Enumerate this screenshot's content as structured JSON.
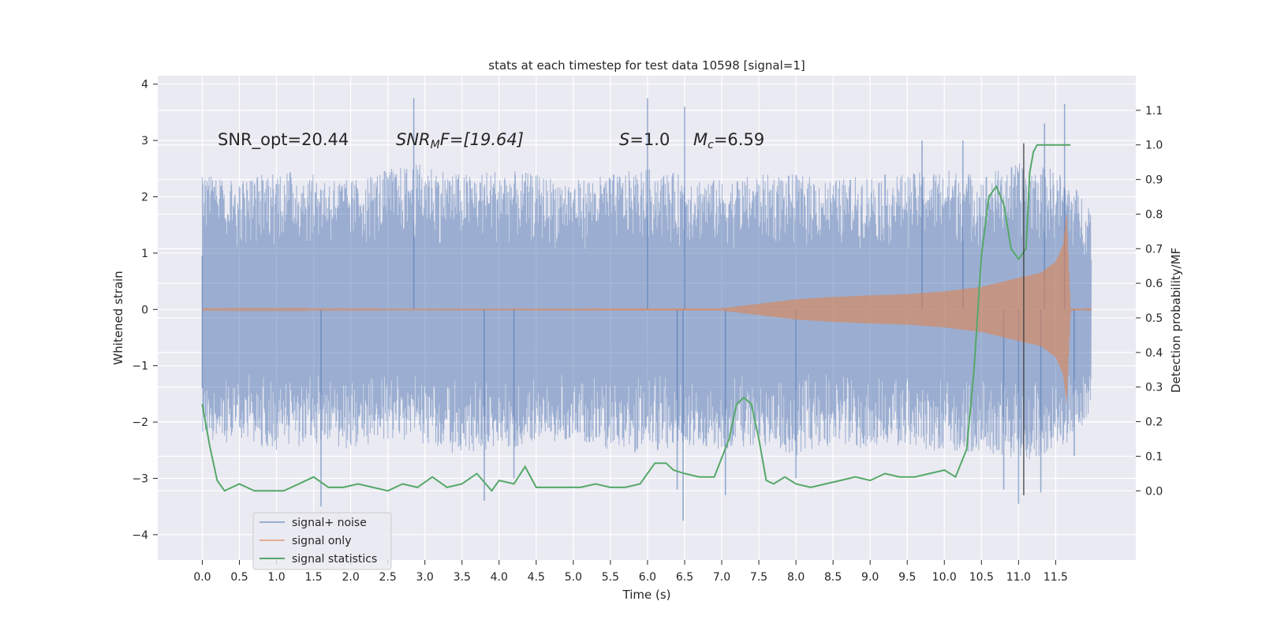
{
  "chart_data": {
    "type": "line",
    "title": "stats at each timestep for test data 10598 [signal=1]",
    "xlabel": "Time (s)",
    "ylabel": "Whitened strain",
    "y2label": "Detection probability/MF",
    "xlim": [
      -0.6,
      12.58
    ],
    "ylim": [
      -4.45,
      4.15
    ],
    "y2lim": [
      -0.2,
      1.2
    ],
    "x_ticks": [
      "0.0",
      "0.5",
      "1.0",
      "1.5",
      "2.0",
      "2.5",
      "3.0",
      "3.5",
      "4.0",
      "4.5",
      "5.0",
      "5.5",
      "6.0",
      "6.5",
      "7.0",
      "7.5",
      "8.0",
      "8.5",
      "9.0",
      "9.5",
      "10.0",
      "10.5",
      "11.0",
      "11.5"
    ],
    "y_ticks": [
      "4",
      "3",
      "2",
      "1",
      "0",
      "−1",
      "−2",
      "−3",
      "−4"
    ],
    "y2_ticks": [
      "1.1",
      "1.0",
      "0.9",
      "0.8",
      "0.7",
      "0.6",
      "0.5",
      "0.4",
      "0.3",
      "0.2",
      "0.1",
      "0.0"
    ],
    "grid": true,
    "legend_position": "lower-left",
    "annotations": {
      "snr_opt": "SNR_opt=20.44",
      "snr_mf_sym": "SNR",
      "snr_mf_sub": "M",
      "snr_mf_val": "F=[19.64]",
      "s_sym": "S",
      "s_val": "=1.0",
      "mc_sym": "M",
      "mc_sub": "c",
      "mc_val": "=6.59"
    },
    "marker_time": 11.07,
    "series": [
      {
        "name": "signal+ noise",
        "color": "#4c72b0",
        "envelope_x": [
          0.0,
          0.5,
          1.0,
          1.5,
          2.0,
          2.5,
          3.0,
          3.5,
          4.0,
          4.5,
          5.0,
          5.5,
          6.0,
          6.5,
          7.0,
          7.5,
          8.0,
          8.5,
          9.0,
          9.5,
          10.0,
          10.5,
          11.0,
          11.5,
          11.98
        ],
        "envelope_high": [
          2.4,
          2.3,
          2.5,
          2.4,
          2.3,
          2.5,
          2.6,
          2.4,
          2.5,
          2.4,
          2.3,
          2.4,
          2.5,
          2.4,
          2.3,
          2.4,
          2.4,
          2.3,
          2.4,
          2.4,
          2.5,
          2.4,
          2.6,
          2.5,
          1.9
        ],
        "envelope_low": [
          -2.3,
          -2.4,
          -2.5,
          -2.4,
          -2.5,
          -2.3,
          -2.4,
          -2.6,
          -2.5,
          -2.4,
          -2.3,
          -2.5,
          -2.6,
          -2.4,
          -2.5,
          -2.4,
          -2.6,
          -2.4,
          -2.5,
          -2.4,
          -2.6,
          -2.5,
          -2.7,
          -2.6,
          -1.9
        ],
        "peaks": [
          [
            0.0,
            0.95
          ],
          [
            0.0,
            -1.4
          ],
          [
            1.6,
            -3.5
          ],
          [
            2.85,
            3.75
          ],
          [
            6.0,
            3.75
          ],
          [
            6.48,
            -3.75
          ],
          [
            6.5,
            3.6
          ],
          [
            6.4,
            -3.2
          ],
          [
            7.05,
            -3.3
          ],
          [
            8.0,
            -3.0
          ],
          [
            10.25,
            3.0
          ],
          [
            10.8,
            -3.2
          ],
          [
            11.0,
            -3.45
          ],
          [
            11.3,
            -3.25
          ],
          [
            11.35,
            3.3
          ],
          [
            11.62,
            3.65
          ],
          [
            11.75,
            -2.6
          ],
          [
            3.8,
            -3.4
          ],
          [
            4.2,
            -3.0
          ],
          [
            9.7,
            3.0
          ]
        ]
      },
      {
        "name": "signal only",
        "color": "#dd8452",
        "envelope_x": [
          0.0,
          7.0,
          7.5,
          8.0,
          8.5,
          9.0,
          9.5,
          10.0,
          10.5,
          11.0,
          11.3,
          11.5,
          11.6,
          11.65,
          11.7,
          11.98
        ],
        "envelope": [
          0.01,
          0.02,
          0.1,
          0.18,
          0.22,
          0.25,
          0.27,
          0.32,
          0.4,
          0.56,
          0.65,
          0.85,
          1.15,
          1.7,
          0.02,
          0.01
        ]
      },
      {
        "name": "signal statistics",
        "color": "#55a868",
        "x": [
          0.0,
          0.1,
          0.2,
          0.3,
          0.5,
          0.7,
          0.9,
          1.1,
          1.3,
          1.5,
          1.7,
          1.9,
          2.1,
          2.3,
          2.5,
          2.7,
          2.9,
          3.1,
          3.3,
          3.5,
          3.7,
          3.9,
          4.0,
          4.2,
          4.35,
          4.5,
          4.7,
          4.9,
          5.1,
          5.3,
          5.5,
          5.7,
          5.9,
          6.1,
          6.25,
          6.35,
          6.5,
          6.7,
          6.9,
          7.1,
          7.2,
          7.3,
          7.4,
          7.5,
          7.6,
          7.7,
          7.85,
          8.0,
          8.2,
          8.4,
          8.6,
          8.8,
          9.0,
          9.2,
          9.4,
          9.6,
          9.8,
          10.0,
          10.15,
          10.3,
          10.4,
          10.5,
          10.6,
          10.7,
          10.8,
          10.9,
          11.0,
          11.1,
          11.15,
          11.2,
          11.25,
          11.3,
          11.5,
          11.7
        ],
        "y": [
          0.25,
          0.13,
          0.03,
          0.0,
          0.02,
          0.0,
          0.0,
          0.0,
          0.02,
          0.04,
          0.01,
          0.01,
          0.02,
          0.01,
          0.0,
          0.02,
          0.01,
          0.04,
          0.01,
          0.02,
          0.05,
          0.0,
          0.03,
          0.02,
          0.07,
          0.01,
          0.01,
          0.01,
          0.01,
          0.02,
          0.01,
          0.01,
          0.02,
          0.08,
          0.08,
          0.06,
          0.05,
          0.04,
          0.04,
          0.15,
          0.25,
          0.27,
          0.25,
          0.15,
          0.03,
          0.02,
          0.04,
          0.02,
          0.01,
          0.02,
          0.03,
          0.04,
          0.03,
          0.05,
          0.04,
          0.04,
          0.05,
          0.06,
          0.04,
          0.12,
          0.35,
          0.68,
          0.85,
          0.88,
          0.83,
          0.7,
          0.67,
          0.7,
          0.92,
          0.98,
          1.0,
          1.0,
          1.0,
          1.0
        ]
      }
    ]
  }
}
